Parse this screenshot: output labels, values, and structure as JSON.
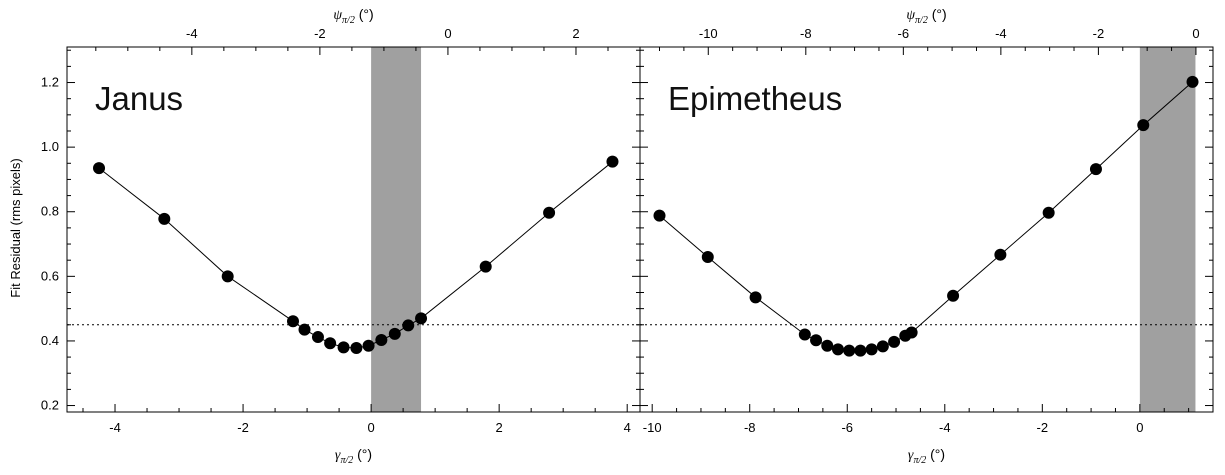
{
  "figure": {
    "ylabel": "Fit Residual (rms pixels)",
    "xlabel_bottom": "γπ/2 (°)",
    "xlabel_top": "ψπ/2 (°)"
  },
  "chart_data": [
    {
      "type": "line",
      "title": "Janus",
      "xlabel": "γπ/2 (°)",
      "top_xlabel": "ψπ/2 (°)",
      "ylabel": "Fit Residual (rms pixels)",
      "xlim": [
        -4.75,
        4.2
      ],
      "ylim": [
        0.18,
        1.31
      ],
      "xticks": [
        -4,
        -2,
        0,
        2,
        4
      ],
      "top_xlim": [
        -5.95,
        3.0
      ],
      "top_xticks": [
        -4,
        -2,
        0,
        2
      ],
      "yticks": [
        0.2,
        0.4,
        0.6,
        0.8,
        1.0,
        1.2
      ],
      "reference_line_y": 0.45,
      "shaded_band_x": [
        0.0,
        0.78
      ],
      "series": [
        {
          "marker": "filled-circle",
          "x": [
            -4.25,
            -3.23,
            -2.24,
            -1.22,
            -1.04,
            -0.83,
            -0.64,
            -0.43,
            -0.23,
            -0.04,
            0.16,
            0.37,
            0.58,
            0.78,
            1.79,
            2.78,
            3.77
          ],
          "y": [
            0.935,
            0.778,
            0.6,
            0.461,
            0.435,
            0.412,
            0.393,
            0.38,
            0.378,
            0.385,
            0.403,
            0.422,
            0.448,
            0.47,
            0.63,
            0.797,
            0.955
          ]
        }
      ]
    },
    {
      "type": "line",
      "title": "Epimetheus",
      "xlabel": "γπ/2 (°)",
      "top_xlabel": "ψπ/2 (°)",
      "ylabel": "",
      "xlim": [
        -10.25,
        1.5
      ],
      "ylim": [
        0.18,
        1.31
      ],
      "xticks": [
        -10,
        -8,
        -6,
        -4,
        -2,
        0
      ],
      "top_xlim": [
        -11.4,
        0.35
      ],
      "top_xticks": [
        -10,
        -8,
        -6,
        -4,
        -2,
        0
      ],
      "yticks": [
        0.2,
        0.4,
        0.6,
        0.8,
        1.0,
        1.2
      ],
      "reference_line_y": 0.45,
      "shaded_band_x": [
        0.0,
        1.14
      ],
      "series": [
        {
          "marker": "filled-circle",
          "x": [
            -9.85,
            -8.86,
            -7.88,
            -6.87,
            -6.64,
            -6.41,
            -6.19,
            -5.96,
            -5.73,
            -5.5,
            -5.27,
            -5.04,
            -4.81,
            -4.68,
            -3.83,
            -2.86,
            -1.87,
            -0.9,
            0.07,
            1.08
          ],
          "y": [
            0.788,
            0.66,
            0.535,
            0.42,
            0.402,
            0.385,
            0.374,
            0.37,
            0.37,
            0.374,
            0.383,
            0.397,
            0.416,
            0.426,
            0.54,
            0.667,
            0.797,
            0.932,
            1.068,
            1.202
          ]
        }
      ]
    }
  ]
}
